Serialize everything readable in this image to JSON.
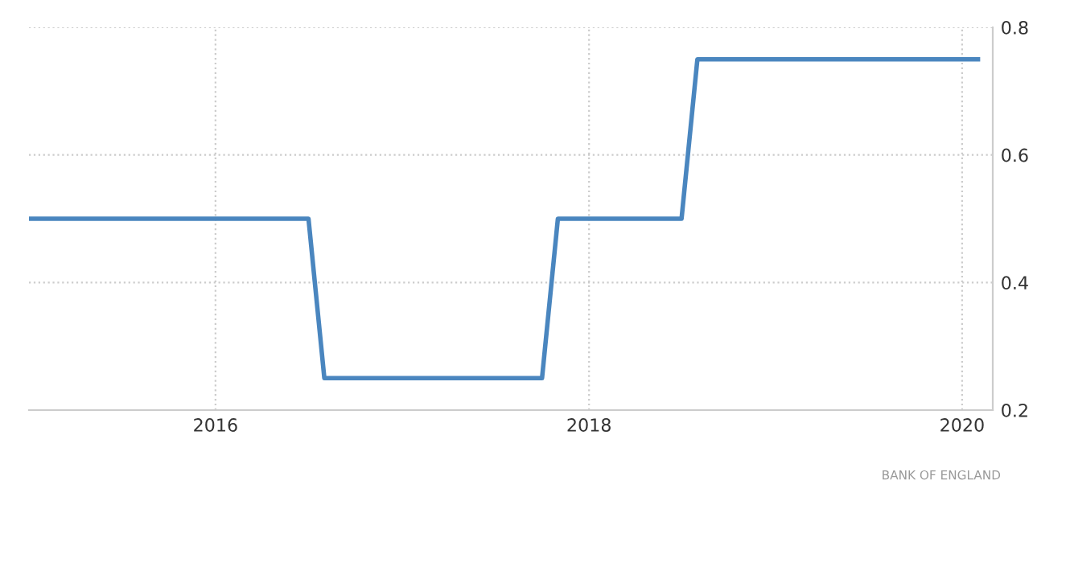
{
  "chart_data": {
    "type": "line",
    "x": [
      "2015-01",
      "2016-07",
      "2016-08",
      "2017-10",
      "2017-11",
      "2018-07",
      "2018-08",
      "2020-02"
    ],
    "series": [
      {
        "color": "#4a86bf",
        "values": [
          0.5,
          0.5,
          0.25,
          0.25,
          0.5,
          0.5,
          0.75,
          0.75
        ]
      }
    ],
    "xlim": [
      "2015-01",
      "2020-03"
    ],
    "xticks": [
      {
        "value": "2016-01-01",
        "label": "2016"
      },
      {
        "value": "2018-01-01",
        "label": "2018"
      },
      {
        "value": "2020-01-01",
        "label": "2020"
      }
    ],
    "ylim": [
      0.2,
      0.8
    ],
    "yticks": [
      0.2,
      0.4,
      0.6,
      0.8
    ],
    "grid": true,
    "line_style": "solid",
    "marker": "none",
    "annotations": [
      "BANK OF ENGLAND"
    ]
  }
}
